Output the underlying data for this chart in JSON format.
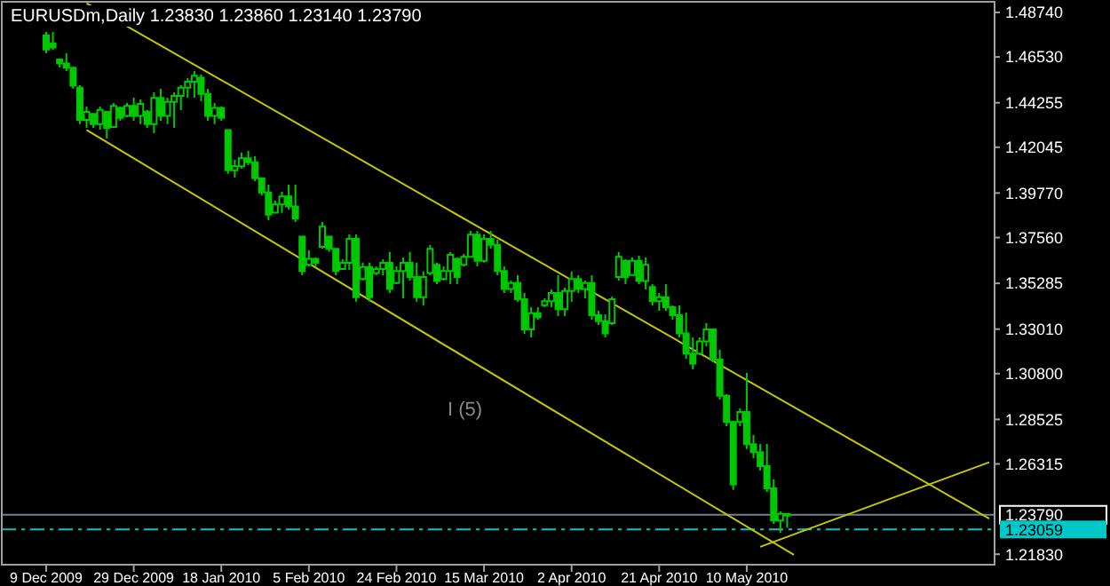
{
  "chart_data": {
    "type": "candlestick",
    "title": "EURUSDm,Daily 1.23830 1.23860 1.23140 1.23790",
    "categories": [
      "9 Dec 2009",
      null,
      null,
      null,
      null,
      null,
      null,
      null,
      null,
      null,
      null,
      null,
      null,
      "29 Dec 2009",
      null,
      null,
      null,
      null,
      null,
      null,
      null,
      null,
      null,
      null,
      null,
      null,
      "18 Jan 2010",
      null,
      null,
      null,
      null,
      null,
      null,
      null,
      null,
      null,
      null,
      null,
      null,
      "5 Feb 2010",
      null,
      null,
      null,
      null,
      null,
      null,
      null,
      null,
      null,
      null,
      null,
      null,
      "24 Feb 2010",
      null,
      null,
      null,
      null,
      null,
      null,
      null,
      null,
      null,
      null,
      null,
      null,
      "15 Mar 2010",
      null,
      null,
      null,
      null,
      null,
      null,
      null,
      null,
      null,
      null,
      null,
      null,
      "2 Apr 2010",
      null,
      null,
      null,
      null,
      null,
      null,
      null,
      null,
      null,
      null,
      null,
      null,
      "21 Apr 2010",
      null,
      null,
      null,
      null,
      null,
      null,
      null,
      null,
      null,
      null,
      null,
      null,
      "10 May 2010",
      null,
      null,
      null,
      null,
      null,
      null,
      null,
      null,
      null,
      null,
      null,
      null,
      null,
      null,
      null,
      null,
      null,
      null,
      null,
      null,
      null,
      null,
      null,
      null,
      null,
      null,
      null,
      null,
      null,
      null,
      null,
      null,
      null,
      null,
      null,
      null
    ],
    "ylim": [
      1.2131,
      1.4927
    ],
    "yticks": [
      {
        "value": 1.4874,
        "label": "1.48740"
      },
      {
        "value": 1.4653,
        "label": "1.46530"
      },
      1.44255,
      1.42045,
      {
        "value": 1.3977,
        "label": "1.39770"
      },
      {
        "value": 1.3756,
        "label": "1.37560"
      },
      1.35285,
      {
        "value": 1.3301,
        "label": "1.33010"
      },
      {
        "value": 1.308,
        "label": "1.30800"
      },
      1.28525,
      1.26315,
      {
        "value": 1.2183,
        "label": "1.21830"
      }
    ],
    "series": [
      {
        "type": "candlestick",
        "color": "#00c800",
        "ohlc": [
          [
            1.476,
            1.4777,
            1.4671,
            1.469
          ],
          [
            1.472,
            1.4777,
            1.4689,
            1.47
          ],
          [
            1.464,
            1.4645,
            1.4601,
            1.462
          ],
          [
            1.462,
            1.4671,
            1.4583,
            1.46
          ],
          [
            1.46,
            1.4601,
            1.4495,
            1.451
          ],
          [
            1.45,
            1.4513,
            1.4319,
            1.434
          ],
          [
            1.434,
            1.4407,
            1.4301,
            1.438
          ],
          [
            1.437,
            1.4372,
            1.4301,
            1.432
          ],
          [
            1.432,
            1.4407,
            1.4292,
            1.439
          ],
          [
            1.438,
            1.438,
            1.4248,
            1.43
          ],
          [
            1.4305,
            1.4424,
            1.4301,
            1.441
          ],
          [
            1.44,
            1.4407,
            1.4336,
            1.435
          ],
          [
            1.436,
            1.4424,
            1.4354,
            1.441
          ],
          [
            1.441,
            1.4451,
            1.4336,
            1.436
          ],
          [
            1.436,
            1.4442,
            1.4319,
            1.442
          ],
          [
            1.438,
            1.4389,
            1.4301,
            1.432
          ],
          [
            1.432,
            1.4477,
            1.4274,
            1.445
          ],
          [
            1.445,
            1.4495,
            1.4336,
            1.436
          ],
          [
            1.436,
            1.4451,
            1.4319,
            1.443
          ],
          [
            1.443,
            1.4477,
            1.4301,
            1.446
          ],
          [
            1.446,
            1.4513,
            1.4389,
            1.45
          ],
          [
            1.45,
            1.4548,
            1.4451,
            1.453
          ],
          [
            1.453,
            1.4583,
            1.4451,
            1.456
          ],
          [
            1.455,
            1.4566,
            1.4433,
            1.447
          ],
          [
            1.447,
            1.4495,
            1.4336,
            1.436
          ],
          [
            1.436,
            1.4424,
            1.4319,
            1.44
          ],
          [
            1.44,
            1.4407,
            1.4336,
            1.435
          ],
          [
            1.429,
            1.4292,
            1.4072,
            1.409
          ],
          [
            1.409,
            1.4142,
            1.4054,
            1.411
          ],
          [
            1.411,
            1.4177,
            1.4098,
            1.415
          ],
          [
            1.415,
            1.4186,
            1.4116,
            1.413
          ],
          [
            1.413,
            1.416,
            1.4036,
            1.405
          ],
          [
            1.405,
            1.4054,
            1.3966,
            1.398
          ],
          [
            1.398,
            1.4019,
            1.3842,
            1.387
          ],
          [
            1.388,
            1.3939,
            1.3878,
            1.392
          ],
          [
            1.392,
            1.3983,
            1.3878,
            1.396
          ],
          [
            1.396,
            1.4019,
            1.3895,
            1.391
          ],
          [
            1.391,
            1.4019,
            1.3833,
            1.385
          ],
          [
            1.376,
            1.3763,
            1.3569,
            1.359
          ],
          [
            1.362,
            1.3692,
            1.3613,
            1.365
          ],
          [
            1.365,
            1.3657,
            1.3613,
            1.363
          ],
          [
            1.371,
            1.3833,
            1.3701,
            1.381
          ],
          [
            1.376,
            1.3763,
            1.3684,
            1.37
          ],
          [
            1.37,
            1.3701,
            1.3569,
            1.359
          ],
          [
            1.36,
            1.3648,
            1.3595,
            1.363
          ],
          [
            1.363,
            1.3772,
            1.3595,
            1.375
          ],
          [
            1.375,
            1.3772,
            1.3437,
            1.346
          ],
          [
            1.355,
            1.3631,
            1.3542,
            1.361
          ],
          [
            1.361,
            1.3631,
            1.3437,
            1.346
          ],
          [
            1.358,
            1.3613,
            1.3569,
            1.36
          ],
          [
            1.36,
            1.3648,
            1.3569,
            1.363
          ],
          [
            1.363,
            1.3684,
            1.3481,
            1.35
          ],
          [
            1.353,
            1.3613,
            1.3525,
            1.359
          ],
          [
            1.359,
            1.3657,
            1.3454,
            1.363
          ],
          [
            1.363,
            1.3684,
            1.3542,
            1.356
          ],
          [
            1.356,
            1.3631,
            1.3437,
            1.346
          ],
          [
            1.346,
            1.3587,
            1.3419,
            1.356
          ],
          [
            1.358,
            1.3719,
            1.3569,
            1.37
          ],
          [
            1.362,
            1.3631,
            1.3525,
            1.354
          ],
          [
            1.355,
            1.3613,
            1.3542,
            1.359
          ],
          [
            1.359,
            1.3684,
            1.3525,
            1.367
          ],
          [
            1.365,
            1.3657,
            1.3525,
            1.356
          ],
          [
            1.362,
            1.3675,
            1.3613,
            1.366
          ],
          [
            1.366,
            1.3789,
            1.3657,
            1.377
          ],
          [
            1.377,
            1.3789,
            1.3613,
            1.364
          ],
          [
            1.364,
            1.3772,
            1.3631,
            1.375
          ],
          [
            1.375,
            1.3789,
            1.3701,
            1.372
          ],
          [
            1.372,
            1.3745,
            1.3569,
            1.359
          ],
          [
            1.359,
            1.3613,
            1.3481,
            1.35
          ],
          [
            1.35,
            1.3542,
            1.3481,
            1.353
          ],
          [
            1.353,
            1.3569,
            1.3437,
            1.345
          ],
          [
            1.345,
            1.3481,
            1.3278,
            1.33
          ],
          [
            1.33,
            1.341,
            1.326,
            1.338
          ],
          [
            1.338,
            1.341,
            1.3348,
            1.336
          ],
          [
            1.342,
            1.3454,
            1.341,
            1.344
          ],
          [
            1.344,
            1.3498,
            1.341,
            1.348
          ],
          [
            1.348,
            1.3569,
            1.3366,
            1.34
          ],
          [
            1.34,
            1.3507,
            1.3366,
            1.349
          ],
          [
            1.349,
            1.3587,
            1.3437,
            1.355
          ],
          [
            1.355,
            1.3569,
            1.3481,
            1.35
          ],
          [
            1.35,
            1.3542,
            1.3454,
            1.353
          ],
          [
            1.353,
            1.3569,
            1.3348,
            1.337
          ],
          [
            1.337,
            1.3392,
            1.3322,
            1.334
          ],
          [
            1.334,
            1.3375,
            1.326,
            1.328
          ],
          [
            1.333,
            1.3463,
            1.3322,
            1.345
          ],
          [
            1.356,
            1.3684,
            1.3542,
            1.366
          ],
          [
            1.364,
            1.3648,
            1.3525,
            1.356
          ],
          [
            1.357,
            1.3657,
            1.3569,
            1.364
          ],
          [
            1.364,
            1.3666,
            1.3525,
            1.354
          ],
          [
            1.354,
            1.3657,
            1.3498,
            1.362
          ],
          [
            1.351,
            1.3525,
            1.3419,
            1.344
          ],
          [
            1.344,
            1.3481,
            1.3392,
            1.346
          ],
          [
            1.346,
            1.3525,
            1.3392,
            1.341
          ],
          [
            1.341,
            1.3419,
            1.3348,
            1.337
          ],
          [
            1.337,
            1.3419,
            1.326,
            1.328
          ],
          [
            1.328,
            1.3384,
            1.3154,
            1.318
          ],
          [
            1.318,
            1.326,
            1.3101,
            1.313
          ],
          [
            1.318,
            1.326,
            1.3172,
            1.324
          ],
          [
            1.324,
            1.3331,
            1.3216,
            1.33
          ],
          [
            1.33,
            1.3304,
            1.3137,
            1.315
          ],
          [
            1.315,
            1.3198,
            1.2951,
            1.297
          ],
          [
            1.297,
            1.2978,
            1.2819,
            1.284
          ],
          [
            1.284,
            1.2846,
            1.2502,
            1.253
          ],
          [
            1.284,
            1.2907,
            1.2819,
            1.289
          ],
          [
            1.289,
            1.3084,
            1.2705,
            1.273
          ],
          [
            1.273,
            1.2775,
            1.266,
            1.269
          ],
          [
            1.269,
            1.2731,
            1.2599,
            1.262
          ],
          [
            1.262,
            1.2731,
            1.2493,
            1.251
          ],
          [
            1.251,
            1.2555,
            1.2334,
            1.235
          ],
          [
            1.235,
            1.2396,
            1.229,
            1.2383
          ],
          [
            1.2383,
            1.2386,
            1.2314,
            1.2379
          ],
          null,
          null,
          null,
          null,
          null,
          null,
          null,
          null,
          null,
          null,
          null,
          null,
          null,
          null,
          null,
          null,
          null,
          null,
          null,
          null,
          null,
          null,
          null,
          null,
          null,
          null,
          null,
          null,
          null,
          null
        ]
      },
      {
        "type": "line",
        "color": "#c8c800",
        "values": [
          null,
          null,
          null,
          null,
          null,
          null,
          1.492,
          null,
          null,
          null,
          null,
          null,
          null,
          null,
          null,
          null,
          null,
          null,
          null,
          null,
          null,
          null,
          null,
          null,
          null,
          null,
          null,
          null,
          null,
          null,
          null,
          null,
          null,
          null,
          null,
          null,
          null,
          null,
          null,
          null,
          null,
          null,
          null,
          null,
          null,
          null,
          null,
          null,
          null,
          null,
          null,
          null,
          null,
          null,
          null,
          null,
          null,
          null,
          null,
          null,
          null,
          null,
          null,
          null,
          null,
          null,
          null,
          null,
          null,
          null,
          null,
          null,
          null,
          null,
          null,
          null,
          null,
          null,
          null,
          null,
          null,
          null,
          null,
          null,
          null,
          null,
          null,
          null,
          null,
          null,
          null,
          null,
          null,
          null,
          null,
          null,
          null,
          null,
          null,
          null,
          null,
          null,
          null,
          null,
          null,
          null,
          null,
          null,
          null,
          null,
          null,
          null,
          null,
          null,
          null,
          null,
          null,
          null,
          null,
          null,
          null,
          null,
          null,
          null,
          null,
          null,
          null,
          null,
          null,
          null,
          null,
          null,
          null,
          null,
          null,
          null,
          null,
          null,
          null,
          null,
          1.236
        ]
      },
      {
        "type": "line",
        "color": "#c8c800",
        "values": [
          null,
          null,
          null,
          null,
          null,
          null,
          1.429,
          null,
          null,
          null,
          null,
          null,
          null,
          null,
          null,
          null,
          null,
          null,
          null,
          null,
          null,
          null,
          null,
          null,
          null,
          null,
          null,
          null,
          null,
          null,
          null,
          null,
          null,
          null,
          null,
          null,
          null,
          null,
          null,
          null,
          null,
          null,
          null,
          null,
          null,
          null,
          null,
          null,
          null,
          null,
          null,
          null,
          null,
          null,
          null,
          null,
          null,
          null,
          null,
          null,
          null,
          null,
          null,
          null,
          null,
          null,
          null,
          null,
          null,
          null,
          null,
          null,
          null,
          null,
          null,
          null,
          null,
          null,
          null,
          null,
          null,
          null,
          null,
          null,
          null,
          null,
          null,
          null,
          null,
          null,
          null,
          null,
          null,
          null,
          null,
          null,
          null,
          null,
          null,
          null,
          null,
          null,
          null,
          null,
          null,
          null,
          null,
          null,
          null,
          null,
          null,
          1.218,
          null,
          null,
          null,
          null,
          null,
          null,
          null,
          null,
          null,
          null,
          null,
          null,
          null,
          null,
          null,
          null,
          null,
          null,
          null,
          null,
          null,
          null,
          null,
          null,
          null,
          null,
          null,
          null,
          null
        ]
      },
      {
        "type": "line",
        "color": "#c8c800",
        "values": [
          null,
          null,
          null,
          null,
          null,
          null,
          null,
          null,
          null,
          null,
          null,
          null,
          null,
          null,
          null,
          null,
          null,
          null,
          null,
          null,
          null,
          null,
          null,
          null,
          null,
          null,
          null,
          null,
          null,
          null,
          null,
          null,
          null,
          null,
          null,
          null,
          null,
          null,
          null,
          null,
          null,
          null,
          null,
          null,
          null,
          null,
          null,
          null,
          null,
          null,
          null,
          null,
          null,
          null,
          null,
          null,
          null,
          null,
          null,
          null,
          null,
          null,
          null,
          null,
          null,
          null,
          null,
          null,
          null,
          null,
          null,
          null,
          null,
          null,
          null,
          null,
          null,
          null,
          null,
          null,
          null,
          null,
          null,
          null,
          null,
          null,
          null,
          null,
          null,
          null,
          null,
          null,
          null,
          null,
          null,
          null,
          null,
          null,
          null,
          null,
          null,
          null,
          null,
          null,
          null,
          null,
          1.222,
          null,
          null,
          null,
          null,
          null,
          null,
          null,
          null,
          null,
          null,
          null,
          null,
          null,
          null,
          null,
          null,
          null,
          null,
          null,
          null,
          null,
          null,
          null,
          null,
          null,
          null,
          null,
          null,
          null,
          null,
          null,
          null,
          null,
          1.264
        ]
      }
    ],
    "ref_lines": [
      {
        "axis": "y",
        "value": 1.2379,
        "label": "1.23790",
        "color": "#70808c",
        "line_style": "solid"
      },
      {
        "axis": "y",
        "value": 1.23059,
        "label": "1.23059",
        "color": "#00c8c8",
        "line_style": "dashed"
      }
    ],
    "annotations": [
      "I (5)"
    ]
  }
}
